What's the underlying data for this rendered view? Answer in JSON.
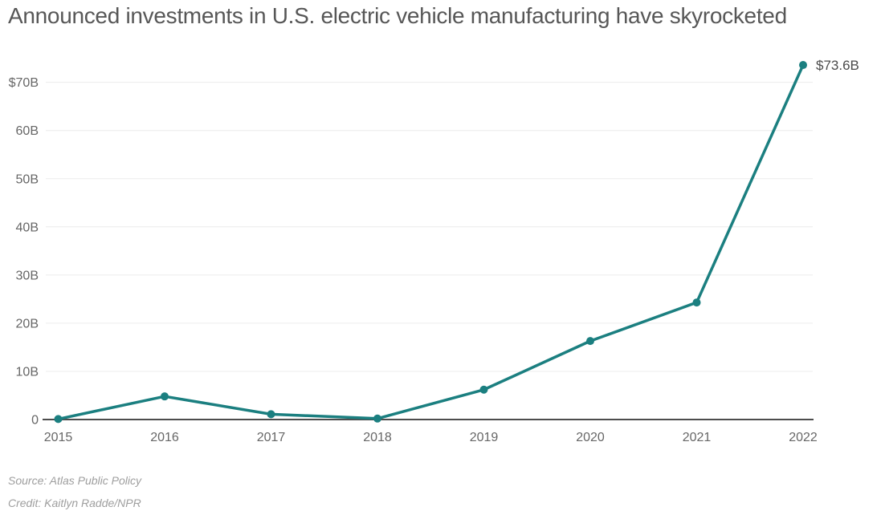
{
  "header": {
    "title": "Announced investments in U.S. electric vehicle manufacturing have skyrocketed"
  },
  "chart_data": {
    "type": "line",
    "title": "Announced investments in U.S. electric vehicle manufacturing have skyrocketed",
    "x": [
      "2015",
      "2016",
      "2017",
      "2018",
      "2019",
      "2020",
      "2021",
      "2022"
    ],
    "values": [
      0.1,
      4.8,
      1.1,
      0.2,
      6.2,
      16.3,
      24.3,
      73.6
    ],
    "xlabel": "",
    "ylabel": "",
    "ylim": [
      0,
      73.6
    ],
    "grid": "horizontal",
    "legend": "none",
    "yticks": [
      {
        "value": 0,
        "label": "0"
      },
      {
        "value": 10,
        "label": "10B"
      },
      {
        "value": 20,
        "label": "20B"
      },
      {
        "value": 30,
        "label": "30B"
      },
      {
        "value": 40,
        "label": "40B"
      },
      {
        "value": 50,
        "label": "50B"
      },
      {
        "value": 60,
        "label": "60B"
      },
      {
        "value": 70,
        "label": "$70B"
      }
    ],
    "end_label": "$73.6B",
    "line_color": "#1b7f80",
    "grid_color": "#ececec",
    "axis_color": "#4d4d4d"
  },
  "footer": {
    "source": "Source: Atlas Public Policy",
    "credit": "Credit: Kaitlyn Radde/NPR"
  }
}
